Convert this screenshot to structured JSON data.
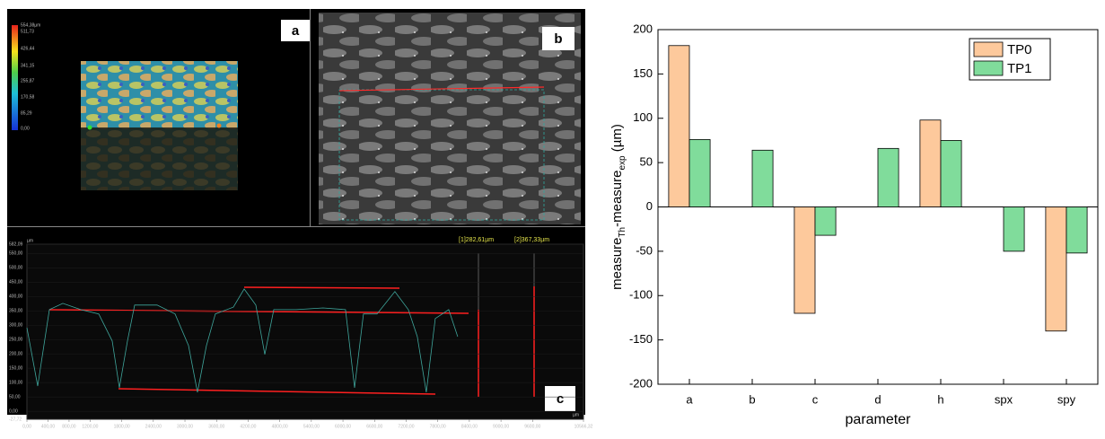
{
  "panel_labels": [
    "a",
    "b",
    "c"
  ],
  "colorbar_labels": [
    "554,38µm",
    "511,73",
    "426,44",
    "341,15",
    "255,87",
    "170,58",
    "85,29",
    "0,00"
  ],
  "chart_data": [
    {
      "type": "bar",
      "categories": [
        "a",
        "b",
        "c",
        "d",
        "h",
        "spx",
        "spy"
      ],
      "series": [
        {
          "name": "TP0",
          "color": "#fdc99c",
          "values": [
            182,
            null,
            -120,
            null,
            98,
            null,
            -140
          ]
        },
        {
          "name": "TP1",
          "color": "#80dc9b",
          "values": [
            76,
            64,
            -32,
            66,
            75,
            -50,
            -52
          ]
        }
      ],
      "ylim": [
        -200,
        200
      ],
      "yticks": [
        -200,
        -150,
        -100,
        -50,
        0,
        50,
        100,
        150,
        200
      ],
      "xlabel": "parameter",
      "ylabel": [
        "measure",
        "Th",
        "-measure",
        "exp",
        " (µm)"
      ],
      "legend": "top-right"
    },
    {
      "type": "line",
      "color": "#3fa69c",
      "x": [
        0,
        204,
        426,
        682,
        1022,
        1363,
        1619,
        1755,
        1908,
        2045,
        2471,
        2812,
        3067,
        3238,
        3408,
        3578,
        3919,
        4124,
        4345,
        4516,
        4686,
        5112,
        5623,
        6049,
        6220,
        6390,
        6646,
        6986,
        7242,
        7412,
        7583,
        7753,
        8008,
        8178
      ],
      "values": [
        291,
        88,
        354,
        376,
        354,
        339,
        245,
        82,
        245,
        370,
        370,
        339,
        229,
        66,
        229,
        339,
        363,
        426,
        370,
        198,
        354,
        354,
        360,
        354,
        82,
        339,
        339,
        417,
        354,
        260,
        66,
        323,
        354,
        260
      ],
      "xlim": [
        0,
        10566.32
      ],
      "ylim": [
        -27.72,
        582.09
      ],
      "xticks": [
        {
          "value": 0,
          "label": "0,00"
        },
        {
          "value": 400,
          "label": "400,00"
        },
        {
          "value": 800,
          "label": "800,00"
        },
        {
          "value": 1200,
          "label": "1200,00"
        },
        {
          "value": 1800,
          "label": "1800,00"
        },
        {
          "value": 2400,
          "label": "2400,00"
        },
        {
          "value": 3000,
          "label": "3000,00"
        },
        {
          "value": 3600,
          "label": "3600,00"
        },
        {
          "value": 4200,
          "label": "4200,00"
        },
        {
          "value": 4800,
          "label": "4800,00"
        },
        {
          "value": 5400,
          "label": "5400,00"
        },
        {
          "value": 6000,
          "label": "6000,00"
        },
        {
          "value": 6600,
          "label": "6600,00"
        },
        {
          "value": 7200,
          "label": "7200,00"
        },
        {
          "value": 7800,
          "label": "7800,00"
        },
        {
          "value": 8400,
          "label": "8400,00"
        },
        {
          "value": 9000,
          "label": "9000,00"
        },
        {
          "value": 9600,
          "label": "9600,00"
        },
        {
          "value": 10566.32,
          "label": "10566,32"
        }
      ],
      "yticks": [
        {
          "value": -27.72,
          "label": "-27,72"
        },
        {
          "value": 0,
          "label": "0,00"
        },
        {
          "value": 50,
          "label": "50,00"
        },
        {
          "value": 100,
          "label": "100,00"
        },
        {
          "value": 150,
          "label": "150,00"
        },
        {
          "value": 200,
          "label": "200,00"
        },
        {
          "value": 250,
          "label": "250,00"
        },
        {
          "value": 300,
          "label": "300,00"
        },
        {
          "value": 350,
          "label": "350,00"
        },
        {
          "value": 400,
          "label": "400,00"
        },
        {
          "value": 450,
          "label": "450,00"
        },
        {
          "value": 500,
          "label": "500,00"
        },
        {
          "value": 550,
          "label": "550,00"
        },
        {
          "value": 582.09,
          "label": "582,09"
        }
      ],
      "x_unit": "µm",
      "y_unit": "µm",
      "annotations": [
        "[1]282,61µm",
        "[2]367,33µm"
      ]
    }
  ]
}
